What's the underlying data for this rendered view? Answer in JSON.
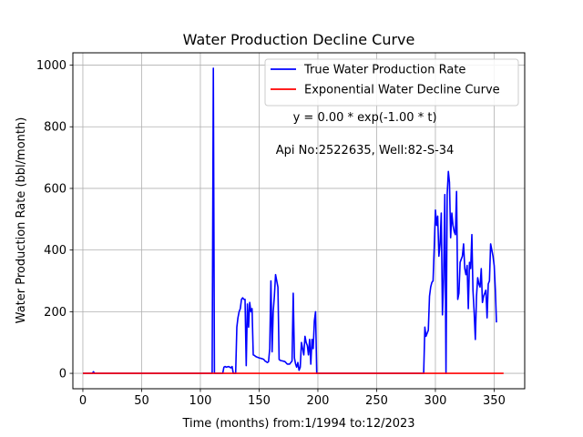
{
  "chart_data": {
    "type": "line",
    "title": "Water Production Decline Curve",
    "xlabel": "Time (months) from:1/1994 to:12/2023",
    "ylabel": "Water Production Rate (bbl/month)",
    "xlim": [
      -8.5,
      376
    ],
    "ylim": [
      -50,
      1040
    ],
    "xticks": [
      0,
      50,
      100,
      150,
      200,
      250,
      300,
      350
    ],
    "yticks": [
      0,
      200,
      400,
      600,
      800,
      1000
    ],
    "grid": true,
    "legend_position": "upper-right",
    "annotations": [
      {
        "text": "y = 0.00 * exp(-1.00 * t)",
        "x": 240,
        "y": 818
      },
      {
        "text": "Api No:2522635, Well:82-S-34",
        "x": 240,
        "y": 712
      }
    ],
    "series": [
      {
        "name": "True Water Production Rate",
        "color": "#0000ff",
        "points": [
          [
            0,
            0
          ],
          [
            8,
            0
          ],
          [
            9,
            5
          ],
          [
            10,
            0
          ],
          [
            110,
            0
          ],
          [
            111,
            990
          ],
          [
            112,
            0
          ],
          [
            119,
            0
          ],
          [
            120,
            20
          ],
          [
            121,
            22
          ],
          [
            122,
            20
          ],
          [
            124,
            22
          ],
          [
            126,
            18
          ],
          [
            127,
            22
          ],
          [
            128,
            0
          ],
          [
            130,
            0
          ],
          [
            131,
            150
          ],
          [
            132,
            180
          ],
          [
            133,
            200
          ],
          [
            134,
            210
          ],
          [
            135,
            240
          ],
          [
            136,
            245
          ],
          [
            137,
            240
          ],
          [
            138,
            240
          ],
          [
            139,
            25
          ],
          [
            140,
            225
          ],
          [
            141,
            150
          ],
          [
            142,
            230
          ],
          [
            143,
            200
          ],
          [
            144,
            210
          ],
          [
            145,
            60
          ],
          [
            146,
            58
          ],
          [
            147,
            55
          ],
          [
            148,
            53
          ],
          [
            150,
            50
          ],
          [
            152,
            48
          ],
          [
            154,
            45
          ],
          [
            155,
            40
          ],
          [
            156,
            38
          ],
          [
            157,
            35
          ],
          [
            158,
            38
          ],
          [
            159,
            80
          ],
          [
            160,
            300
          ],
          [
            161,
            70
          ],
          [
            162,
            200
          ],
          [
            163,
            250
          ],
          [
            164,
            320
          ],
          [
            165,
            300
          ],
          [
            166,
            280
          ],
          [
            167,
            45
          ],
          [
            168,
            42
          ],
          [
            170,
            40
          ],
          [
            172,
            38
          ],
          [
            174,
            30
          ],
          [
            176,
            30
          ],
          [
            177,
            35
          ],
          [
            178,
            40
          ],
          [
            179,
            260
          ],
          [
            180,
            50
          ],
          [
            181,
            30
          ],
          [
            182,
            20
          ],
          [
            183,
            35
          ],
          [
            184,
            10
          ],
          [
            185,
            20
          ],
          [
            186,
            100
          ],
          [
            187,
            80
          ],
          [
            188,
            60
          ],
          [
            189,
            120
          ],
          [
            190,
            100
          ],
          [
            191,
            90
          ],
          [
            192,
            60
          ],
          [
            193,
            110
          ],
          [
            194,
            30
          ],
          [
            195,
            110
          ],
          [
            196,
            80
          ],
          [
            197,
            170
          ],
          [
            198,
            200
          ],
          [
            199,
            0
          ],
          [
            200,
            0
          ],
          [
            290,
            0
          ],
          [
            291,
            150
          ],
          [
            292,
            120
          ],
          [
            293,
            130
          ],
          [
            294,
            140
          ],
          [
            295,
            250
          ],
          [
            296,
            280
          ],
          [
            297,
            295
          ],
          [
            298,
            300
          ],
          [
            299,
            410
          ],
          [
            300,
            530
          ],
          [
            301,
            480
          ],
          [
            302,
            510
          ],
          [
            303,
            380
          ],
          [
            304,
            420
          ],
          [
            305,
            520
          ],
          [
            306,
            190
          ],
          [
            307,
            310
          ],
          [
            308,
            580
          ],
          [
            309,
            0
          ],
          [
            310,
            580
          ],
          [
            311,
            655
          ],
          [
            312,
            620
          ],
          [
            313,
            440
          ],
          [
            314,
            520
          ],
          [
            315,
            480
          ],
          [
            316,
            460
          ],
          [
            317,
            450
          ],
          [
            318,
            590
          ],
          [
            319,
            240
          ],
          [
            320,
            260
          ],
          [
            321,
            360
          ],
          [
            322,
            370
          ],
          [
            323,
            380
          ],
          [
            324,
            420
          ],
          [
            325,
            340
          ],
          [
            326,
            320
          ],
          [
            327,
            350
          ],
          [
            328,
            210
          ],
          [
            329,
            360
          ],
          [
            330,
            340
          ],
          [
            331,
            450
          ],
          [
            332,
            270
          ],
          [
            333,
            200
          ],
          [
            334,
            110
          ],
          [
            335,
            250
          ],
          [
            336,
            310
          ],
          [
            337,
            290
          ],
          [
            338,
            280
          ],
          [
            339,
            340
          ],
          [
            340,
            230
          ],
          [
            341,
            250
          ],
          [
            342,
            260
          ],
          [
            343,
            270
          ],
          [
            344,
            180
          ],
          [
            345,
            290
          ],
          [
            346,
            300
          ],
          [
            347,
            420
          ],
          [
            348,
            400
          ],
          [
            349,
            380
          ],
          [
            350,
            350
          ],
          [
            351,
            270
          ],
          [
            352,
            165
          ]
        ]
      },
      {
        "name": "Exponential Water Decline Curve",
        "color": "#ff0000",
        "points": [
          [
            0,
            0
          ],
          [
            358,
            0
          ]
        ]
      }
    ]
  }
}
